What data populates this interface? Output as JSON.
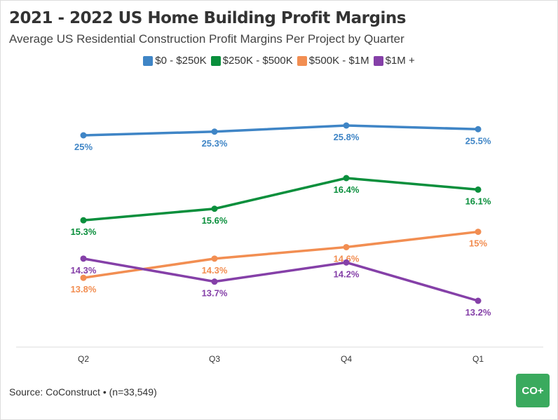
{
  "chart_data": {
    "type": "line",
    "title": "2021 - 2022 US Home Building Profit Margins",
    "subtitle": "Average US Residential Construction Profit Margins Per Project by Quarter",
    "categories": [
      "Q2",
      "Q3",
      "Q4",
      "Q1"
    ],
    "legend_position": "top",
    "grid": false,
    "series": [
      {
        "name": "$0 - $250K",
        "color": "#3f85c6",
        "values": [
          25,
          25.3,
          25.8,
          25.5
        ],
        "labels": [
          "25%",
          "25.3%",
          "25.8%",
          "25.5%"
        ]
      },
      {
        "name": "$250K - $500K",
        "color": "#0a8f3c",
        "values": [
          15.3,
          15.6,
          16.4,
          16.1
        ],
        "labels": [
          "15.3%",
          "15.6%",
          "16.4%",
          "16.1%"
        ]
      },
      {
        "name": "$500K - $1M",
        "color": "#f28e52",
        "values": [
          13.8,
          14.3,
          14.6,
          15
        ],
        "labels": [
          "13.8%",
          "14.3%",
          "14.6%",
          "15%"
        ]
      },
      {
        "name": "$1M +",
        "color": "#8540a8",
        "values": [
          14.3,
          13.7,
          14.2,
          13.2
        ],
        "labels": [
          "14.3%",
          "13.7%",
          "14.2%",
          "13.2%"
        ]
      }
    ]
  },
  "footer": {
    "source": "Source: CoConstruct • (n=33,549)",
    "logo_text": "CO+"
  }
}
